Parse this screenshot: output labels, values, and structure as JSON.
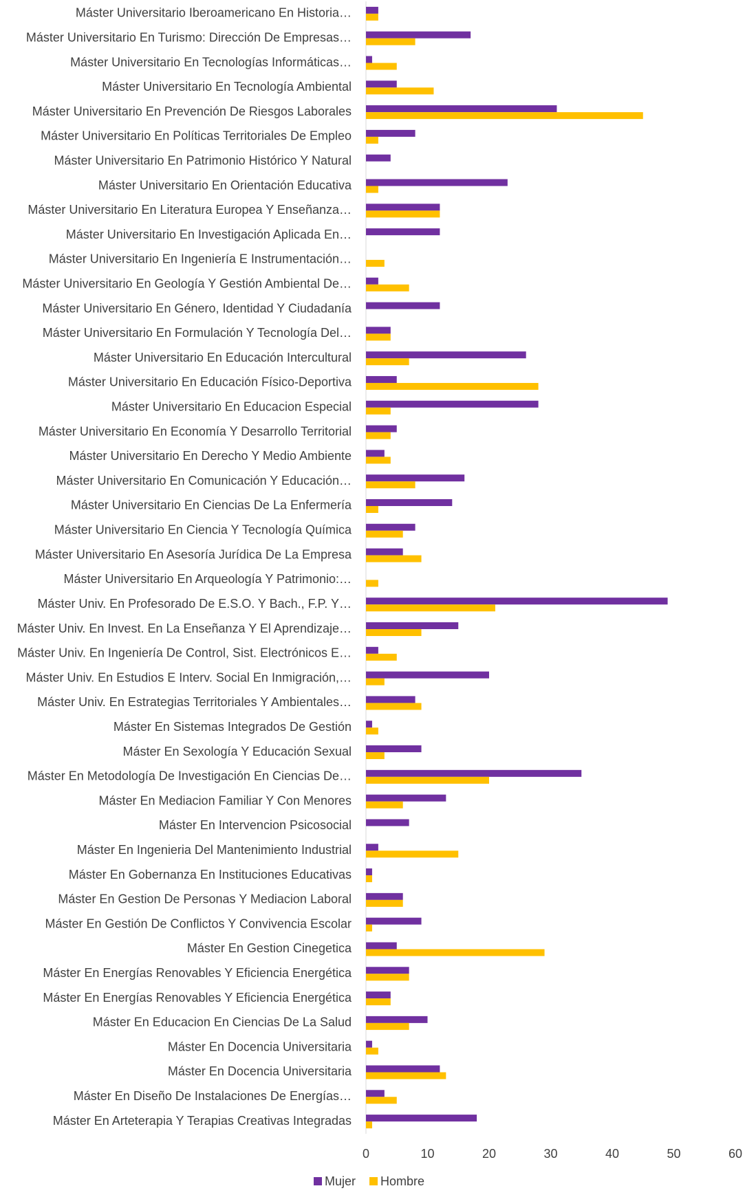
{
  "chart_data": {
    "type": "barh",
    "categories": [
      "Máster Universitario Iberoamericano En Historia…",
      "Máster Universitario En Turismo: Dirección De Empresas…",
      "Máster Universitario En Tecnologías Informáticas…",
      "Máster Universitario En Tecnología Ambiental",
      "Máster Universitario En Prevención De Riesgos Laborales",
      "Máster Universitario En Políticas Territoriales De Empleo",
      "Máster Universitario En Patrimonio Histórico Y Natural",
      "Máster Universitario En Orientación Educativa",
      "Máster Universitario En Literatura Europea Y Enseñanza…",
      "Máster Universitario En Investigación Aplicada En…",
      "Máster Universitario En Ingeniería E Instrumentación…",
      "Máster Universitario En Geología Y Gestión Ambiental De…",
      "Máster Universitario En Género, Identidad Y Ciudadanía",
      "Máster Universitario En Formulación Y Tecnología Del…",
      "Máster Universitario En Educación Intercultural",
      "Máster Universitario En Educación Físico-Deportiva",
      "Máster Universitario En Educacion Especial",
      "Máster Universitario En Economía Y Desarrollo Territorial",
      "Máster Universitario En Derecho Y Medio Ambiente",
      "Máster Universitario En Comunicación Y Educación…",
      "Máster Universitario En Ciencias De La Enfermería",
      "Máster Universitario En Ciencia Y Tecnología Química",
      "Máster Universitario En Asesoría Jurídica De La Empresa",
      "Máster Universitario En Arqueología Y Patrimonio:…",
      "Máster Univ. En Profesorado De E.S.O. Y Bach., F.P. Y…",
      "Máster Univ. En Invest. En La Enseñanza Y El Aprendizaje…",
      "Máster Univ. En Ingeniería De Control, Sist. Electrónicos E…",
      "Máster Univ. En Estudios E Interv. Social En Inmigración,…",
      "Máster Univ. En Estrategias Territoriales Y Ambientales…",
      "Máster En Sistemas Integrados De Gestión",
      "Máster En Sexología Y Educación Sexual",
      "Máster En Metodología De Investigación En Ciencias De…",
      "Máster En Mediacion Familiar Y Con Menores",
      "Máster En Intervencion Psicosocial",
      "Máster En Ingenieria Del Mantenimiento Industrial",
      "Máster En Gobernanza En Instituciones Educativas",
      "Máster En Gestion De Personas Y Mediacion Laboral",
      "Máster En Gestión De Conflictos Y Convivencia Escolar",
      "Máster En Gestion Cinegetica",
      "Máster En Energías Renovables Y Eficiencia Energética",
      "Máster En Energías Renovables Y Eficiencia Energética",
      "Máster En Educacion En Ciencias De La Salud",
      "Máster En Docencia Universitaria",
      "Máster En Docencia Universitaria",
      "Máster En Diseño De Instalaciones De Energías…",
      "Máster En Arteterapia Y Terapias Creativas Integradas"
    ],
    "series": [
      {
        "name": "Mujer",
        "color": "#7030a0",
        "values": [
          2,
          17,
          1,
          5,
          31,
          8,
          4,
          23,
          12,
          12,
          0,
          2,
          12,
          4,
          26,
          5,
          28,
          5,
          3,
          16,
          14,
          8,
          6,
          0,
          49,
          15,
          2,
          20,
          8,
          1,
          9,
          35,
          13,
          7,
          2,
          1,
          6,
          9,
          5,
          7,
          4,
          10,
          1,
          12,
          3,
          18
        ]
      },
      {
        "name": "Hombre",
        "color": "#ffc000",
        "values": [
          2,
          8,
          5,
          11,
          45,
          2,
          0,
          2,
          12,
          0,
          3,
          7,
          0,
          4,
          7,
          28,
          4,
          4,
          4,
          8,
          2,
          6,
          9,
          2,
          21,
          9,
          5,
          3,
          9,
          2,
          3,
          20,
          6,
          0,
          15,
          1,
          6,
          1,
          29,
          7,
          4,
          7,
          2,
          13,
          5,
          1
        ]
      }
    ],
    "xlim": [
      0,
      60
    ],
    "xticks": [
      0,
      10,
      20,
      30,
      40,
      50,
      60
    ],
    "legend": "bottom"
  }
}
